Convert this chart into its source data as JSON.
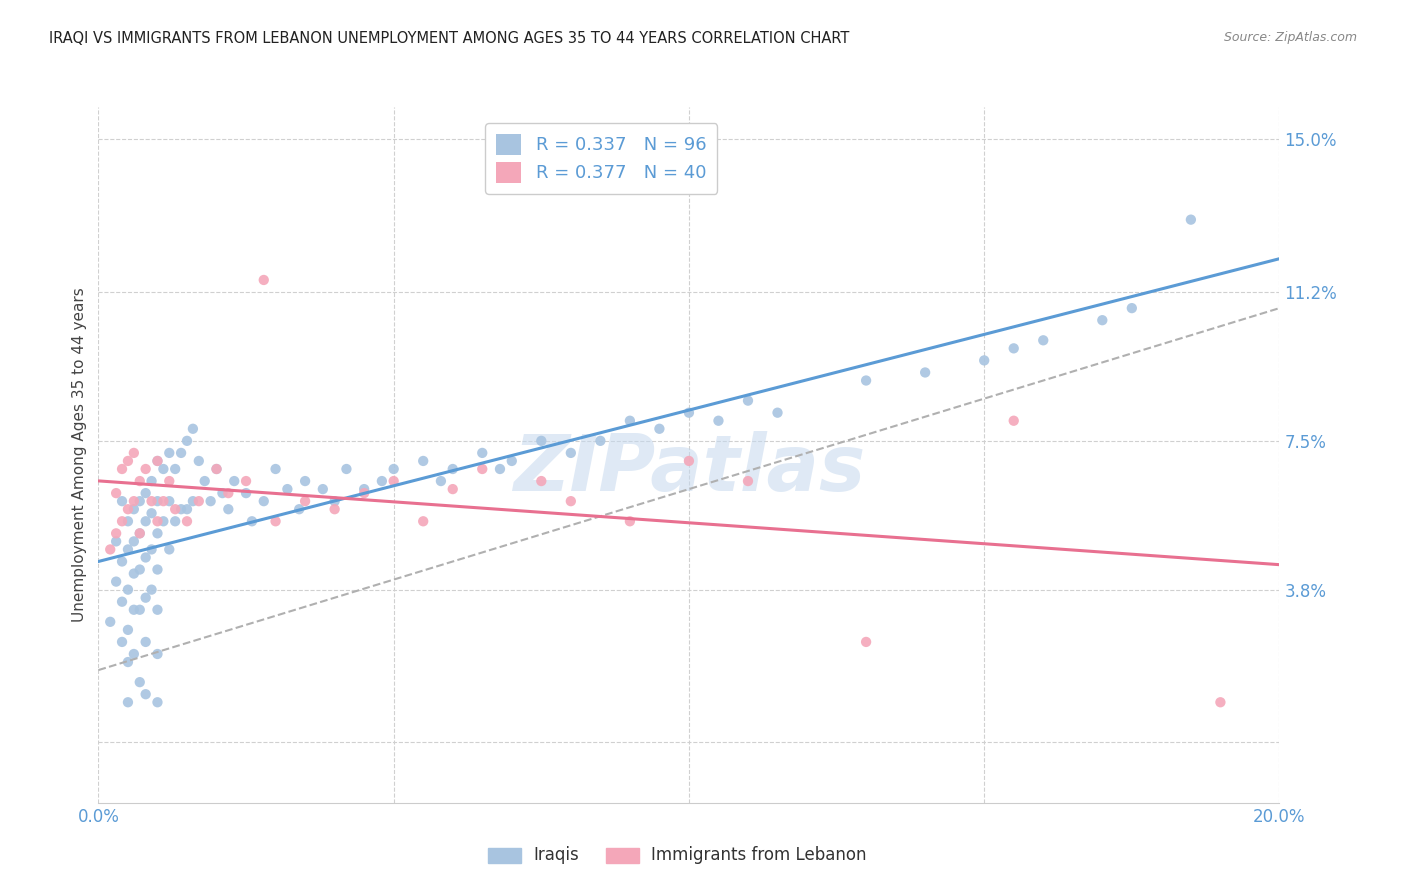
{
  "title": "IRAQI VS IMMIGRANTS FROM LEBANON UNEMPLOYMENT AMONG AGES 35 TO 44 YEARS CORRELATION CHART",
  "source": "Source: ZipAtlas.com",
  "ylabel": "Unemployment Among Ages 35 to 44 years",
  "xlim": [
    0.0,
    0.2
  ],
  "ylim": [
    -0.015,
    0.158
  ],
  "ytick_vals": [
    0.0,
    0.038,
    0.075,
    0.112,
    0.15
  ],
  "ytick_labels": [
    "",
    "3.8%",
    "7.5%",
    "11.2%",
    "15.0%"
  ],
  "xtick_vals": [
    0.0,
    0.05,
    0.1,
    0.15,
    0.2
  ],
  "xtick_labels": [
    "0.0%",
    "",
    "",
    "",
    "20.0%"
  ],
  "iraqis_R": 0.337,
  "iraqis_N": 96,
  "lebanon_R": 0.377,
  "lebanon_N": 40,
  "iraqis_color": "#a8c4e0",
  "lebanon_color": "#f4a7b9",
  "iraqis_line_color": "#5b9bd5",
  "lebanon_line_color": "#e87090",
  "dash_line_color": "#b0b0b0",
  "watermark": "ZIPatlas",
  "iraqis_scatter_x": [
    0.002,
    0.003,
    0.003,
    0.004,
    0.004,
    0.004,
    0.004,
    0.005,
    0.005,
    0.005,
    0.005,
    0.005,
    0.005,
    0.006,
    0.006,
    0.006,
    0.006,
    0.006,
    0.007,
    0.007,
    0.007,
    0.007,
    0.007,
    0.008,
    0.008,
    0.008,
    0.008,
    0.008,
    0.008,
    0.009,
    0.009,
    0.009,
    0.009,
    0.01,
    0.01,
    0.01,
    0.01,
    0.01,
    0.01,
    0.01,
    0.011,
    0.011,
    0.012,
    0.012,
    0.012,
    0.013,
    0.013,
    0.014,
    0.014,
    0.015,
    0.015,
    0.016,
    0.016,
    0.017,
    0.018,
    0.019,
    0.02,
    0.021,
    0.022,
    0.023,
    0.025,
    0.026,
    0.028,
    0.03,
    0.032,
    0.034,
    0.035,
    0.038,
    0.04,
    0.042,
    0.045,
    0.048,
    0.05,
    0.055,
    0.058,
    0.06,
    0.065,
    0.068,
    0.07,
    0.075,
    0.08,
    0.085,
    0.09,
    0.095,
    0.1,
    0.105,
    0.11,
    0.115,
    0.13,
    0.14,
    0.15,
    0.155,
    0.16,
    0.17,
    0.175,
    0.185
  ],
  "iraqis_scatter_y": [
    0.03,
    0.05,
    0.04,
    0.06,
    0.045,
    0.035,
    0.025,
    0.055,
    0.048,
    0.038,
    0.028,
    0.02,
    0.01,
    0.058,
    0.05,
    0.042,
    0.033,
    0.022,
    0.06,
    0.052,
    0.043,
    0.033,
    0.015,
    0.062,
    0.055,
    0.046,
    0.036,
    0.025,
    0.012,
    0.065,
    0.057,
    0.048,
    0.038,
    0.07,
    0.06,
    0.052,
    0.043,
    0.033,
    0.022,
    0.01,
    0.068,
    0.055,
    0.072,
    0.06,
    0.048,
    0.068,
    0.055,
    0.072,
    0.058,
    0.075,
    0.058,
    0.078,
    0.06,
    0.07,
    0.065,
    0.06,
    0.068,
    0.062,
    0.058,
    0.065,
    0.062,
    0.055,
    0.06,
    0.068,
    0.063,
    0.058,
    0.065,
    0.063,
    0.06,
    0.068,
    0.063,
    0.065,
    0.068,
    0.07,
    0.065,
    0.068,
    0.072,
    0.068,
    0.07,
    0.075,
    0.072,
    0.075,
    0.08,
    0.078,
    0.082,
    0.08,
    0.085,
    0.082,
    0.09,
    0.092,
    0.095,
    0.098,
    0.1,
    0.105,
    0.108,
    0.13
  ],
  "lebanon_scatter_x": [
    0.002,
    0.003,
    0.003,
    0.004,
    0.004,
    0.005,
    0.005,
    0.006,
    0.006,
    0.007,
    0.007,
    0.008,
    0.009,
    0.01,
    0.01,
    0.011,
    0.012,
    0.013,
    0.015,
    0.017,
    0.02,
    0.022,
    0.025,
    0.028,
    0.03,
    0.035,
    0.04,
    0.045,
    0.05,
    0.055,
    0.06,
    0.065,
    0.075,
    0.08,
    0.09,
    0.1,
    0.11,
    0.13,
    0.155,
    0.19
  ],
  "lebanon_scatter_y": [
    0.048,
    0.062,
    0.052,
    0.068,
    0.055,
    0.07,
    0.058,
    0.072,
    0.06,
    0.065,
    0.052,
    0.068,
    0.06,
    0.07,
    0.055,
    0.06,
    0.065,
    0.058,
    0.055,
    0.06,
    0.068,
    0.062,
    0.065,
    0.115,
    0.055,
    0.06,
    0.058,
    0.062,
    0.065,
    0.055,
    0.063,
    0.068,
    0.065,
    0.06,
    0.055,
    0.07,
    0.065,
    0.025,
    0.08,
    0.01
  ],
  "background_color": "#ffffff",
  "grid_color": "#d0d0d0",
  "iraqis_label": "Iraqis",
  "lebanon_label": "Immigrants from Lebanon"
}
